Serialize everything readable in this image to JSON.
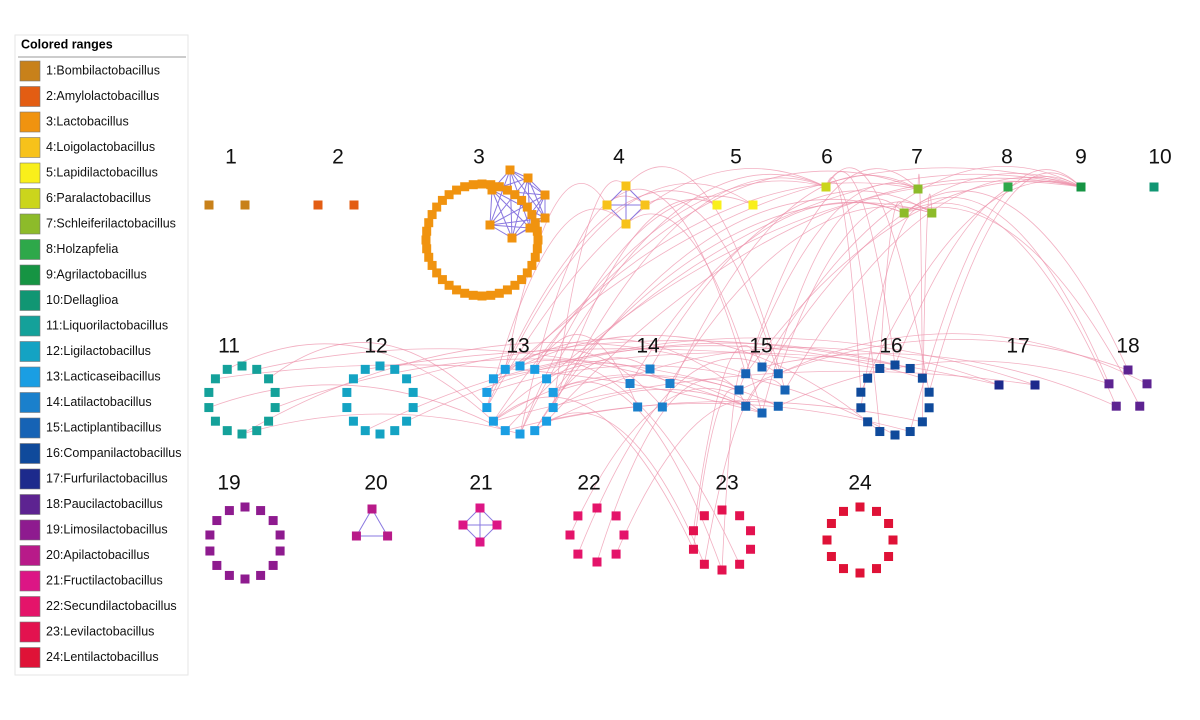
{
  "legend": {
    "title": "Colored ranges",
    "items": [
      {
        "label": "1:Bombilactobacillus",
        "color": "#c8811a"
      },
      {
        "label": "2:Amylolactobacillus",
        "color": "#e35d13"
      },
      {
        "label": "3:Lactobacillus",
        "color": "#f0930f"
      },
      {
        "label": "4:Loigolactobacillus",
        "color": "#f7c21a"
      },
      {
        "label": "5:Lapidilactobacillus",
        "color": "#f9ef1b"
      },
      {
        "label": "6:Paralactobacillus",
        "color": "#cbd51c"
      },
      {
        "label": "7:Schleiferilactobacillus",
        "color": "#8dbb2a"
      },
      {
        "label": "8:Holzapfelia",
        "color": "#2ea84a"
      },
      {
        "label": "9:Agrilactobacillus",
        "color": "#169443"
      },
      {
        "label": "10:Dellaglioa",
        "color": "#119673"
      },
      {
        "label": "11:Liquorilactobacillus",
        "color": "#14a19a"
      },
      {
        "label": "12:Ligilactobacillus",
        "color": "#14a3c3"
      },
      {
        "label": "13:Lacticaseibacillus",
        "color": "#1a9ee3"
      },
      {
        "label": "14:Latilactobacillus",
        "color": "#1a80cc"
      },
      {
        "label": "15:Lactiplantibacillus",
        "color": "#1663b5"
      },
      {
        "label": "16:Companilactobacillus",
        "color": "#0f4a9b"
      },
      {
        "label": "17:Furfurilactobacillus",
        "color": "#1c2a8c"
      },
      {
        "label": "18:Paucilactobacillus",
        "color": "#5d2391"
      },
      {
        "label": "19:Limosilactobacillus",
        "color": "#8e1b8f"
      },
      {
        "label": "20:Apilactobacillus",
        "color": "#b81a89"
      },
      {
        "label": "21:Fructilactobacillus",
        "color": "#dc1685"
      },
      {
        "label": "22:Secundilactobacillus",
        "color": "#e4146a"
      },
      {
        "label": "23:Levilactobacillus",
        "color": "#e3124f"
      },
      {
        "label": "24:Lentilactobacillus",
        "color": "#df1237"
      }
    ]
  },
  "clusters": [
    {
      "label": "1",
      "node_count": 2
    },
    {
      "label": "2",
      "node_count": 2
    },
    {
      "label": "3",
      "node_count": 40
    },
    {
      "label": "4",
      "node_count": 4
    },
    {
      "label": "5",
      "node_count": 2
    },
    {
      "label": "6",
      "node_count": 1
    },
    {
      "label": "7",
      "node_count": 3
    },
    {
      "label": "8",
      "node_count": 1
    },
    {
      "label": "9",
      "node_count": 1
    },
    {
      "label": "10",
      "node_count": 1
    },
    {
      "label": "11",
      "node_count": 14
    },
    {
      "label": "12",
      "node_count": 14
    },
    {
      "label": "13",
      "node_count": 14
    },
    {
      "label": "14",
      "node_count": 5
    },
    {
      "label": "15",
      "node_count": 8
    },
    {
      "label": "16",
      "node_count": 14
    },
    {
      "label": "17",
      "node_count": 2
    },
    {
      "label": "18",
      "node_count": 5
    },
    {
      "label": "19",
      "node_count": 14
    },
    {
      "label": "20",
      "node_count": 3
    },
    {
      "label": "21",
      "node_count": 4
    },
    {
      "label": "22",
      "node_count": 8
    },
    {
      "label": "23",
      "node_count": 10
    },
    {
      "label": "24",
      "node_count": 12
    }
  ]
}
